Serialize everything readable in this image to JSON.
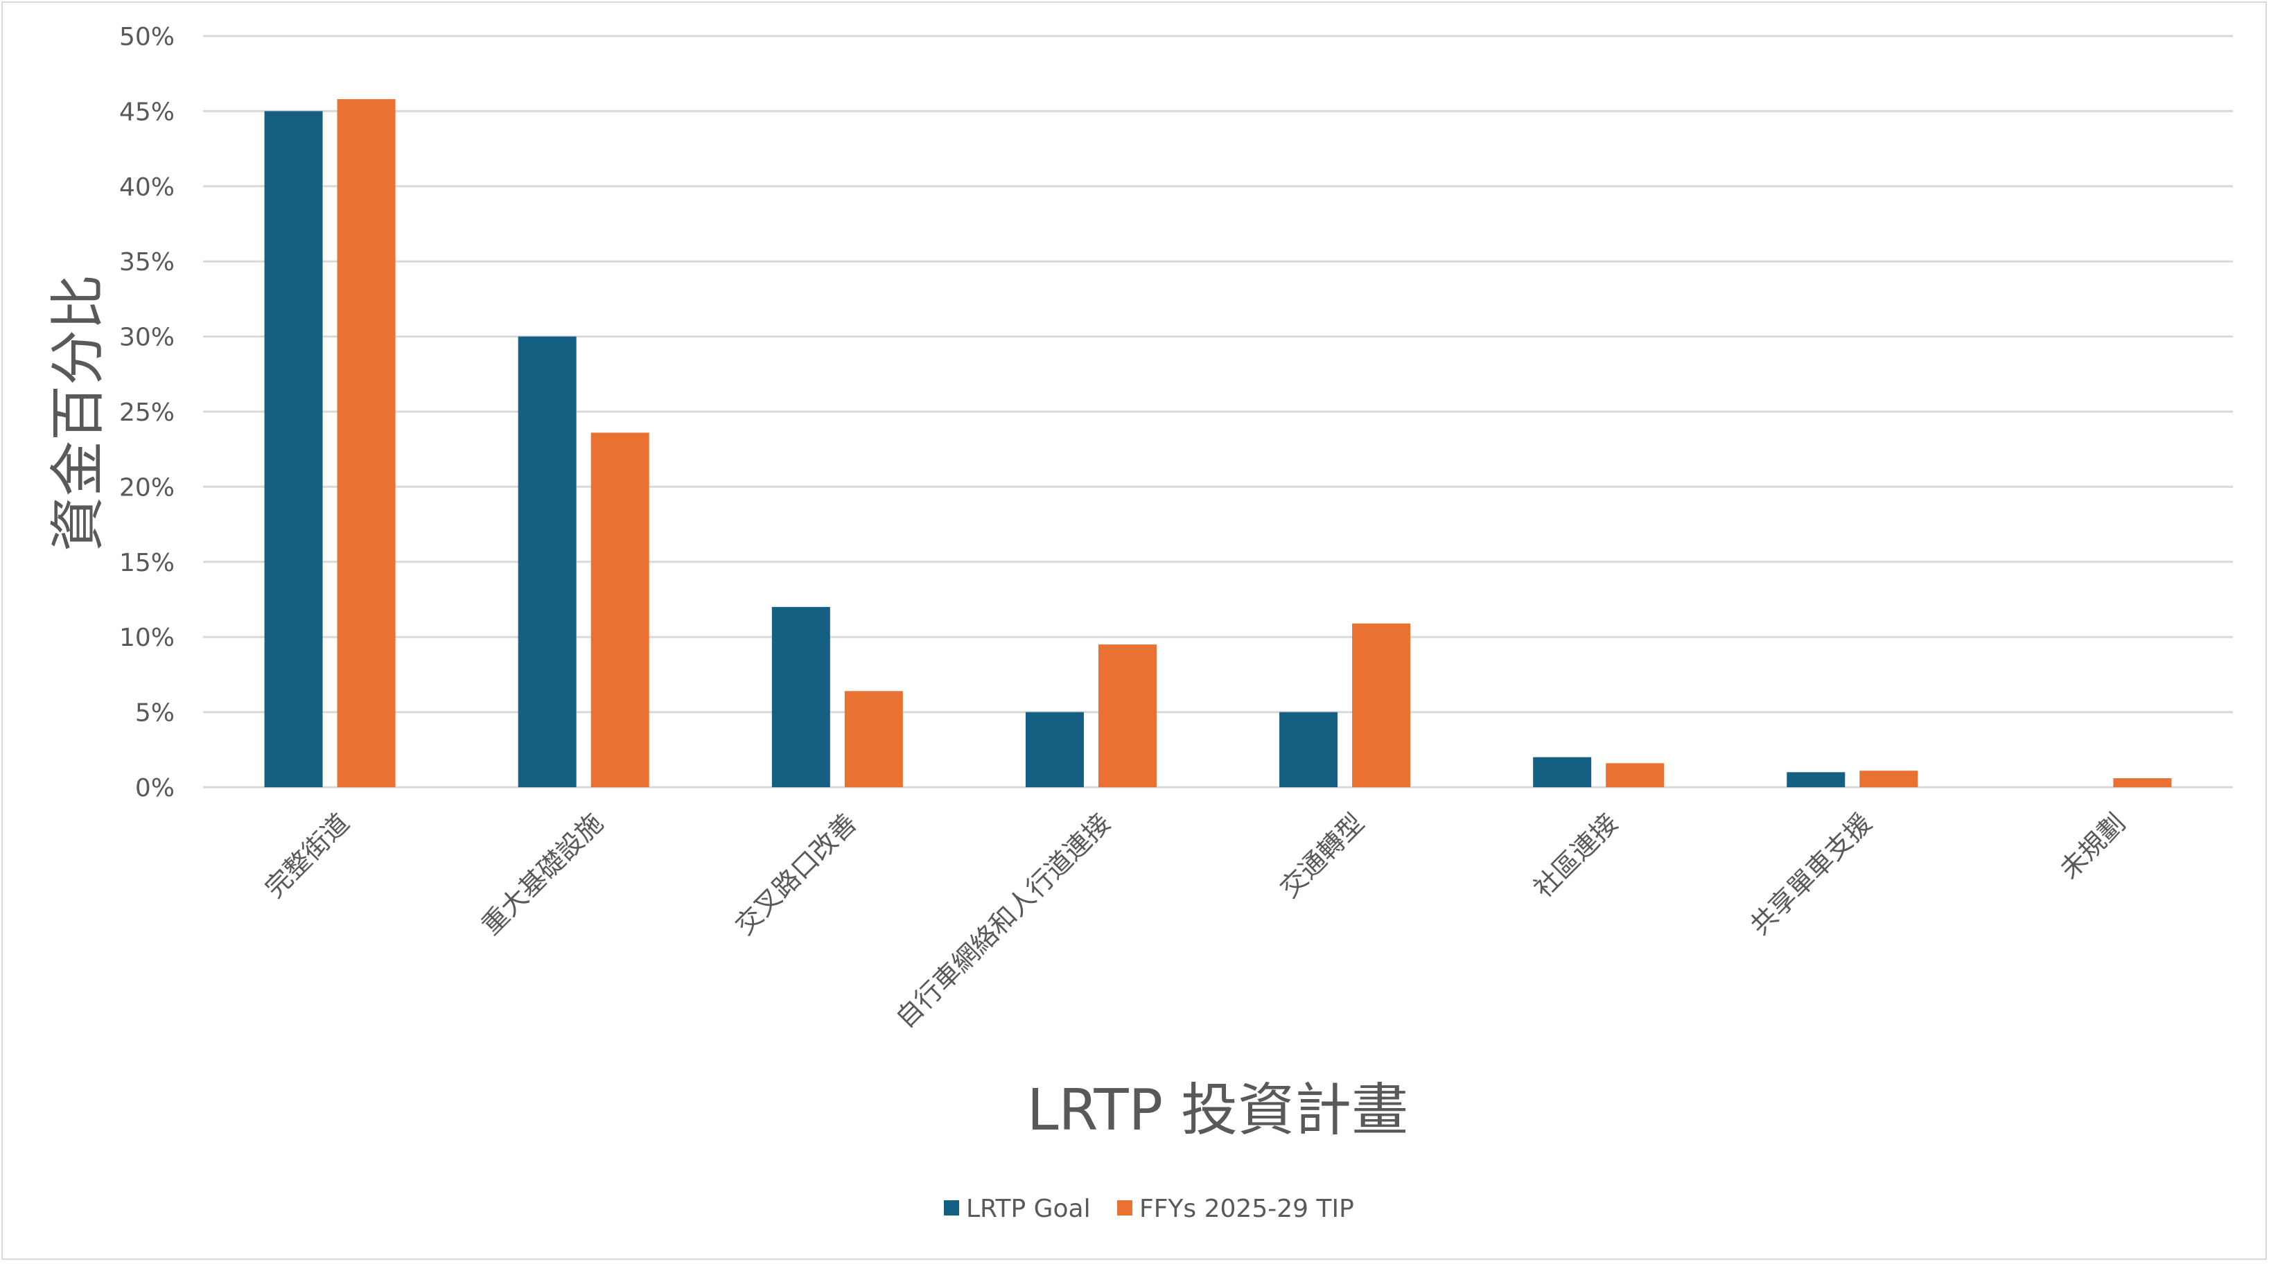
{
  "chart_data": {
    "type": "bar",
    "title": "",
    "xlabel": "LRTP 投資計畫",
    "ylabel": "資金百分比",
    "ylim": [
      0,
      50
    ],
    "yticks": [
      "0%",
      "5%",
      "10%",
      "15%",
      "20%",
      "25%",
      "30%",
      "35%",
      "40%",
      "45%",
      "50%"
    ],
    "grid": true,
    "legend_position": "bottom",
    "categories": [
      "完整街道",
      "重大基礎設施",
      "交叉路口改善",
      "自行車網絡和人行道連接",
      "交通轉型",
      "社區連接",
      "共享單車支援",
      "未規劃"
    ],
    "series": [
      {
        "name": "LRTP Goal",
        "color": "#155f82",
        "values": [
          45,
          30,
          12,
          5,
          5,
          2,
          1,
          0
        ]
      },
      {
        "name": "FFYs 2025-29 TIP",
        "color": "#e97132",
        "values": [
          45.8,
          23.6,
          6.4,
          9.5,
          10.9,
          1.6,
          1.1,
          0.6
        ]
      }
    ]
  }
}
